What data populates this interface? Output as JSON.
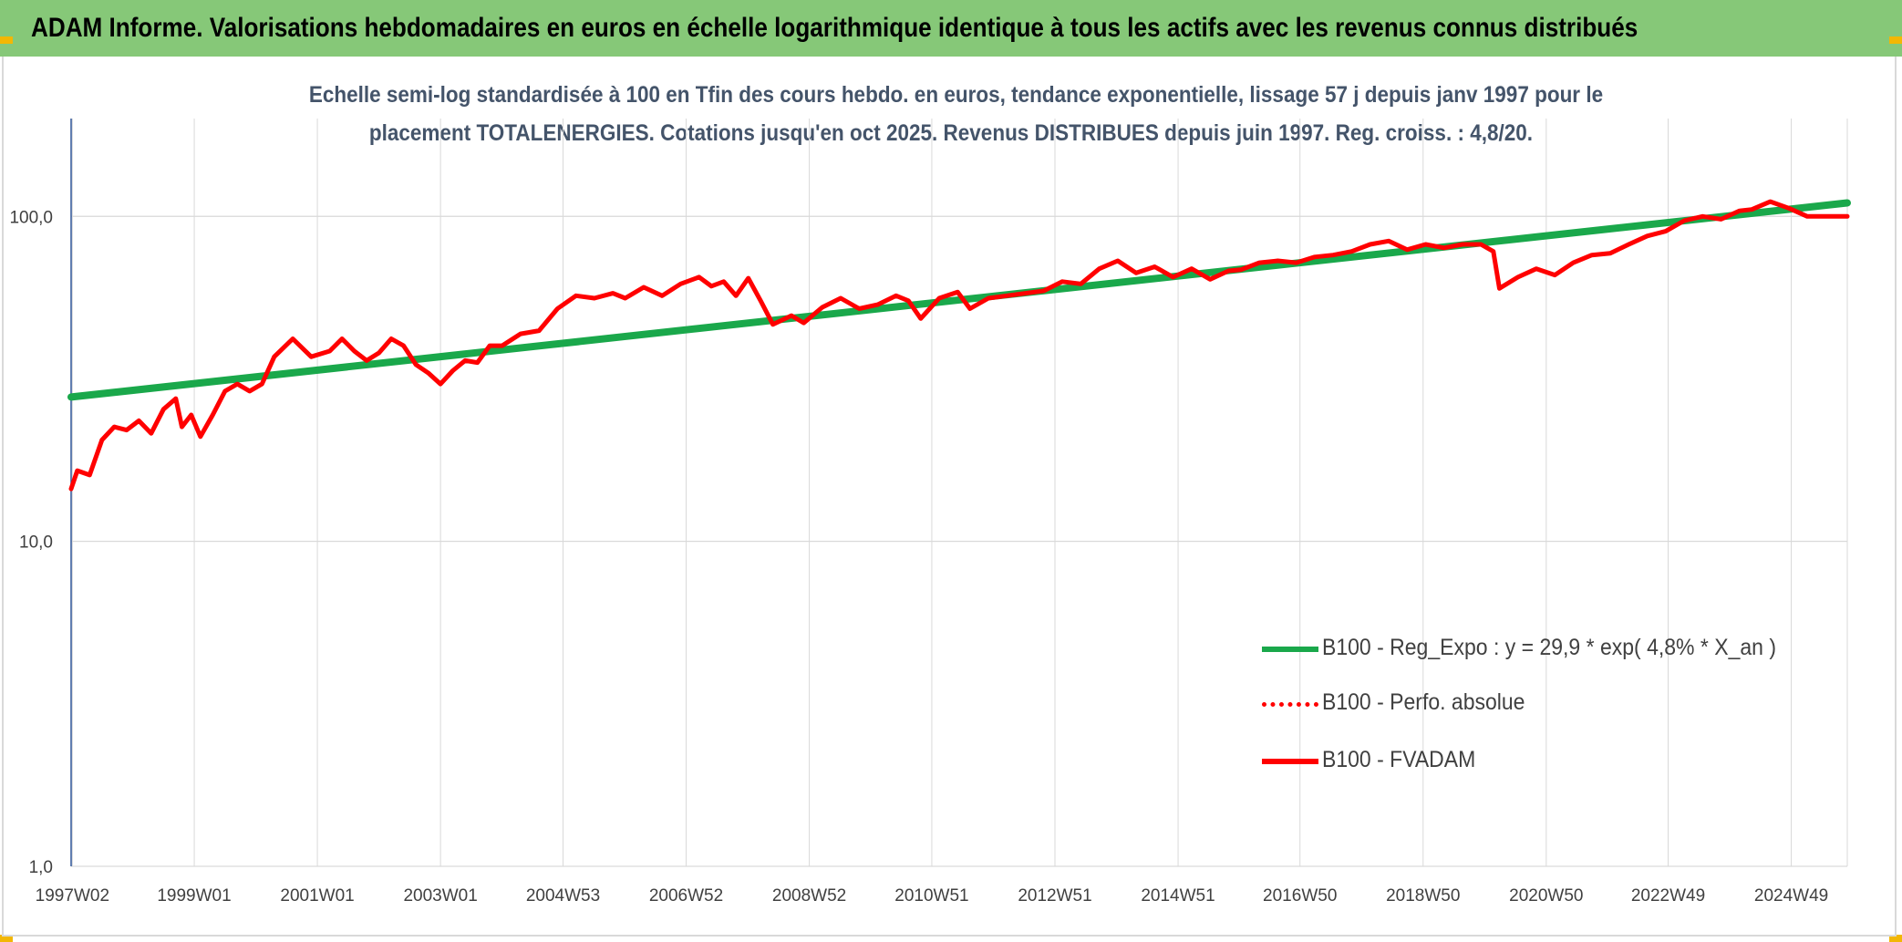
{
  "banner": {
    "title": "ADAM Informe. Valorisations hebdomadaires en euros en échelle logarithmique identique à tous les actifs avec les revenus connus distribués"
  },
  "chart_data": {
    "type": "line",
    "title_line1": "Echelle semi-log standardisée à 100 en Tfin des cours hebdo. en euros, tendance exponentielle, lissage 57 j depuis janv 1997 pour le",
    "title_line2": "placement TOTALENERGIES. Cotations jusqu'en oct 2025. Revenus DISTRIBUES depuis juin 1997. Reg. croiss. : 4,8/20.",
    "y_scale": "log",
    "ylim": [
      1,
      200
    ],
    "y_ticks": [
      1,
      10,
      100
    ],
    "y_tick_labels": [
      "1,0",
      "10,0",
      "100,0"
    ],
    "x_range": [
      1997.0,
      2025.85
    ],
    "x_ticks": [
      1997.02,
      1999.0,
      2001.0,
      2003.0,
      2004.99,
      2006.99,
      2008.99,
      2010.98,
      2012.98,
      2014.98,
      2016.96,
      2018.96,
      2020.96,
      2022.94,
      2024.94
    ],
    "x_tick_labels": [
      "1997W02",
      "1999W01",
      "2001W01",
      "2003W01",
      "2004W53",
      "2006W52",
      "2008W52",
      "2010W51",
      "2012W51",
      "2014W51",
      "2016W50",
      "2018W50",
      "2020W50",
      "2022W49",
      "2024W49"
    ],
    "grid": true,
    "legend_position": "bottom-right",
    "series": [
      {
        "name": "B100 - Reg_Expo : y = 29,9 * exp( 4,8% *  X_an )",
        "color": "#1aa84b",
        "style": "solid",
        "x": [
          1997.0,
          2025.85
        ],
        "y": [
          27.8,
          110.0
        ]
      },
      {
        "name": "B100 - Perfo. absolue",
        "color": "#ff0000",
        "style": "dotted",
        "x": [],
        "y": []
      },
      {
        "name": "B100 - FVADAM",
        "color": "#ff0000",
        "style": "solid",
        "x": [
          1997.0,
          1997.1,
          1997.3,
          1997.5,
          1997.7,
          1997.9,
          1998.1,
          1998.3,
          1998.5,
          1998.7,
          1998.8,
          1998.95,
          1999.1,
          1999.3,
          1999.5,
          1999.7,
          1999.9,
          2000.1,
          2000.3,
          2000.6,
          2000.9,
          2001.2,
          2001.4,
          2001.6,
          2001.8,
          2002.0,
          2002.2,
          2002.4,
          2002.6,
          2002.8,
          2003.0,
          2003.2,
          2003.4,
          2003.6,
          2003.8,
          2004.0,
          2004.3,
          2004.6,
          2004.9,
          2005.2,
          2005.5,
          2005.8,
          2006.0,
          2006.3,
          2006.6,
          2006.9,
          2007.2,
          2007.4,
          2007.6,
          2007.8,
          2008.0,
          2008.2,
          2008.4,
          2008.7,
          2008.9,
          2009.2,
          2009.5,
          2009.8,
          2010.1,
          2010.4,
          2010.6,
          2010.8,
          2011.1,
          2011.4,
          2011.6,
          2011.9,
          2012.2,
          2012.5,
          2012.8,
          2013.1,
          2013.4,
          2013.7,
          2014.0,
          2014.3,
          2014.6,
          2014.9,
          2015.2,
          2015.5,
          2015.8,
          2016.0,
          2016.3,
          2016.6,
          2016.9,
          2017.2,
          2017.5,
          2017.8,
          2018.1,
          2018.4,
          2018.7,
          2019.0,
          2019.3,
          2019.6,
          2019.9,
          2020.1,
          2020.2,
          2020.5,
          2020.8,
          2021.1,
          2021.4,
          2021.7,
          2022.0,
          2022.3,
          2022.6,
          2022.9,
          2023.2,
          2023.5,
          2023.8,
          2024.1,
          2024.3,
          2024.6,
          2024.9,
          2025.2,
          2025.5,
          2025.85
        ],
        "y": [
          14.5,
          16.5,
          16.0,
          20.5,
          22.5,
          22.0,
          23.5,
          21.5,
          25.5,
          27.5,
          22.5,
          24.5,
          21.0,
          24.5,
          29.0,
          30.5,
          29.0,
          30.5,
          37.0,
          42.0,
          37.0,
          38.5,
          42.0,
          38.5,
          36.0,
          38.0,
          42.0,
          40.0,
          35.0,
          33.0,
          30.5,
          33.5,
          36.0,
          35.5,
          40.0,
          40.0,
          43.5,
          44.5,
          52.0,
          57.0,
          56.0,
          58.0,
          56.0,
          60.5,
          57.0,
          62.0,
          65.0,
          61.0,
          63.0,
          57.0,
          64.5,
          55.0,
          46.5,
          49.5,
          47.0,
          52.5,
          56.0,
          52.0,
          53.5,
          57.0,
          55.0,
          48.5,
          56.0,
          58.5,
          52.0,
          56.0,
          57.0,
          58.0,
          59.0,
          63.0,
          62.0,
          69.0,
          73.0,
          67.0,
          70.0,
          65.0,
          69.0,
          64.0,
          68.0,
          68.5,
          72.0,
          73.0,
          72.0,
          75.0,
          76.0,
          78.0,
          82.0,
          84.0,
          79.0,
          82.0,
          80.0,
          82.0,
          82.0,
          78.0,
          60.0,
          65.0,
          69.0,
          66.0,
          72.0,
          76.0,
          77.0,
          82.0,
          87.0,
          90.0,
          97.0,
          100.0,
          98.0,
          104.0,
          105.0,
          111.0,
          106.0,
          100.0,
          100.0,
          100.0
        ]
      }
    ]
  }
}
